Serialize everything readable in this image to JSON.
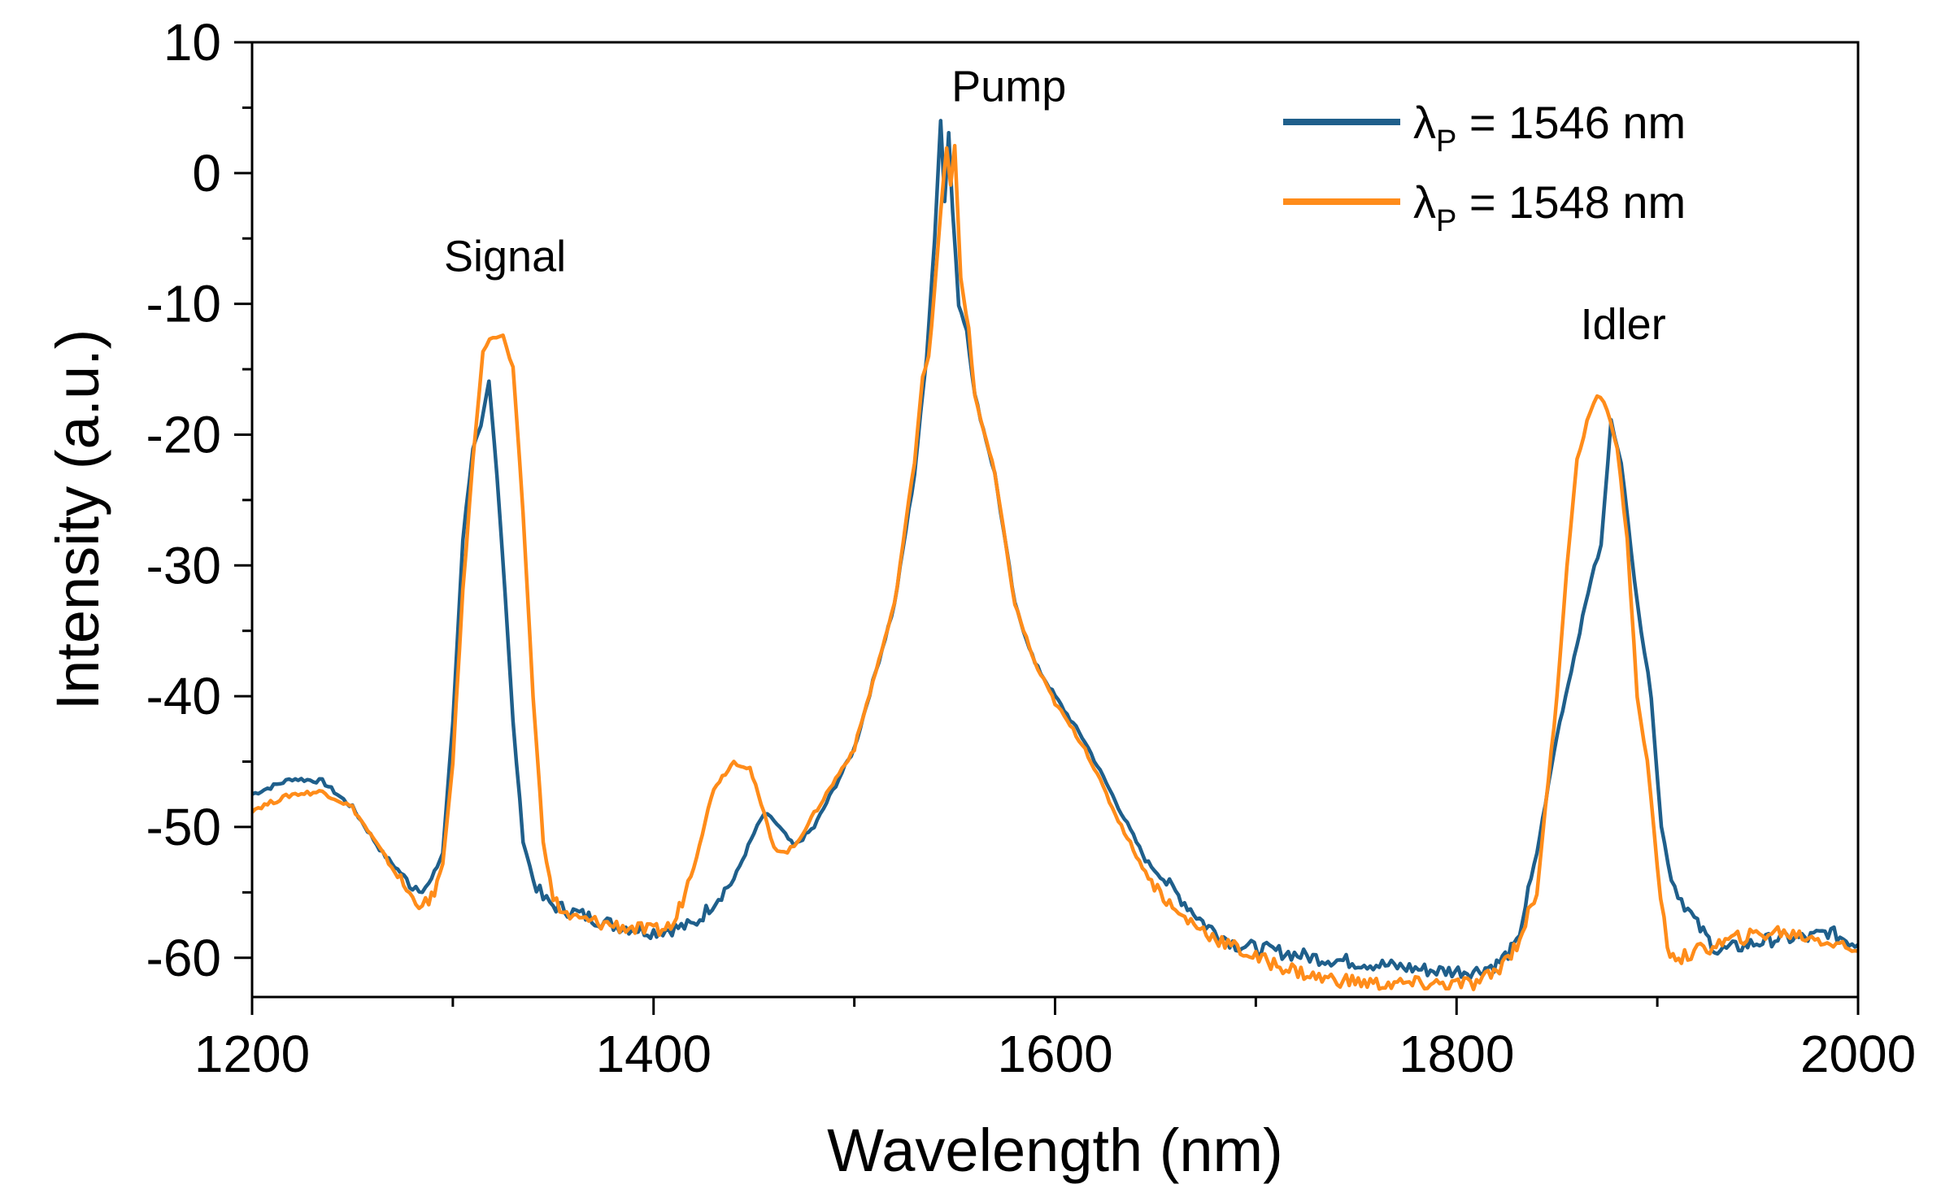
{
  "chart_data": {
    "type": "line",
    "title": "",
    "xlabel": "Wavelength (nm)",
    "ylabel": "Intensity (a.u.)",
    "xlim": [
      1200,
      2000
    ],
    "ylim": [
      -63,
      10
    ],
    "x_ticks": [
      1200,
      1400,
      1600,
      1800,
      2000
    ],
    "x_tick_labels": [
      "1200",
      "1400",
      "1600",
      "1800",
      "2000"
    ],
    "y_ticks": [
      10,
      0,
      -10,
      -20,
      -30,
      -40,
      -50,
      -60
    ],
    "y_tick_labels": [
      "10",
      "0",
      "-10",
      "-20",
      "-30",
      "-40",
      "-50",
      "-60"
    ],
    "grid": false,
    "legend_position": "top-right",
    "annotations": [
      {
        "text": "Signal",
        "x": 1326,
        "y": -7.5
      },
      {
        "text": "Pump",
        "x": 1577,
        "y": 5.5
      },
      {
        "text": "Idler",
        "x": 1883,
        "y": -12.7
      }
    ],
    "series": [
      {
        "name": "1546",
        "legend_prefix": "λ",
        "legend_sub": "P",
        "legend_suffix": " = 1546 nm",
        "color": "#1f5f8b",
        "x": [
          1200,
          1220,
          1235,
          1250,
          1265,
          1280,
          1288,
          1295,
          1300,
          1305,
          1310,
          1314,
          1318,
          1322,
          1326,
          1330,
          1335,
          1340,
          1345,
          1350,
          1360,
          1380,
          1400,
          1420,
          1440,
          1450,
          1455,
          1460,
          1470,
          1480,
          1500,
          1520,
          1530,
          1536,
          1540,
          1543,
          1545,
          1547,
          1549,
          1552,
          1556,
          1560,
          1570,
          1580,
          1590,
          1600,
          1615,
          1630,
          1645,
          1660,
          1675,
          1690,
          1710,
          1730,
          1760,
          1790,
          1810,
          1820,
          1830,
          1840,
          1850,
          1860,
          1867,
          1872,
          1877,
          1882,
          1887,
          1892,
          1897,
          1902,
          1907,
          1912,
          1920,
          1930,
          1945,
          1960,
          1975,
          1985,
          2000
        ],
        "values": [
          -47.5,
          -46.3,
          -46.5,
          -48.5,
          -52,
          -54.5,
          -54.5,
          -52,
          -42,
          -28,
          -21,
          -19.5,
          -16,
          -23,
          -32,
          -42,
          -51,
          -54,
          -55.5,
          -56,
          -56.5,
          -57.5,
          -58,
          -57.5,
          -54,
          -50.5,
          -49,
          -49.5,
          -51.5,
          -50,
          -44,
          -33,
          -23,
          -14,
          -5,
          4,
          -2,
          3,
          -3,
          -10,
          -12,
          -17,
          -23,
          -33,
          -37.5,
          -40,
          -43.5,
          -48,
          -52.5,
          -55,
          -57.5,
          -59,
          -59.5,
          -60,
          -60.5,
          -61,
          -61,
          -60.5,
          -59,
          -52,
          -43,
          -36,
          -31,
          -28.5,
          -19,
          -22,
          -29,
          -35,
          -40,
          -50,
          -54,
          -55.5,
          -57.5,
          -59.5,
          -59,
          -58.5,
          -58.5,
          -58,
          -59
        ]
      },
      {
        "name": "1548",
        "legend_prefix": "λ",
        "legend_sub": "P",
        "legend_suffix": " = 1548 nm",
        "color": "#ff8c1a",
        "x": [
          1200,
          1220,
          1235,
          1250,
          1265,
          1280,
          1288,
          1295,
          1300,
          1305,
          1310,
          1315,
          1320,
          1325,
          1330,
          1335,
          1340,
          1345,
          1350,
          1355,
          1360,
          1380,
          1400,
          1410,
          1420,
          1430,
          1440,
          1448,
          1455,
          1460,
          1465,
          1470,
          1480,
          1500,
          1520,
          1530,
          1534,
          1537,
          1540,
          1543,
          1546,
          1548,
          1550,
          1553,
          1557,
          1560,
          1570,
          1580,
          1590,
          1600,
          1615,
          1630,
          1645,
          1660,
          1680,
          1700,
          1730,
          1760,
          1790,
          1810,
          1820,
          1830,
          1840,
          1850,
          1855,
          1860,
          1865,
          1870,
          1875,
          1880,
          1885,
          1890,
          1895,
          1900,
          1905,
          1912,
          1920,
          1940,
          1960,
          1980,
          2000
        ],
        "values": [
          -48.7,
          -47.5,
          -47.3,
          -48.5,
          -52,
          -55.5,
          -56,
          -53,
          -45,
          -32,
          -22,
          -13.5,
          -12.5,
          -12.5,
          -15,
          -26,
          -40,
          -51,
          -55.5,
          -56.5,
          -57,
          -57.5,
          -58,
          -57.5,
          -53,
          -47,
          -45,
          -45.5,
          -49,
          -51.5,
          -52,
          -51.5,
          -49,
          -44,
          -33,
          -22,
          -15.5,
          -14,
          -9,
          -3,
          2,
          -1,
          2,
          -8,
          -12,
          -17,
          -23,
          -33,
          -37.5,
          -40.5,
          -44,
          -49,
          -53.5,
          -56.5,
          -58.5,
          -60,
          -61.5,
          -62,
          -62,
          -62,
          -61,
          -59,
          -55,
          -40,
          -30,
          -22,
          -19,
          -17,
          -18,
          -21,
          -28,
          -40,
          -45,
          -53,
          -59.5,
          -60,
          -59.5,
          -58.5,
          -58,
          -58.5,
          -59.5
        ]
      }
    ]
  }
}
